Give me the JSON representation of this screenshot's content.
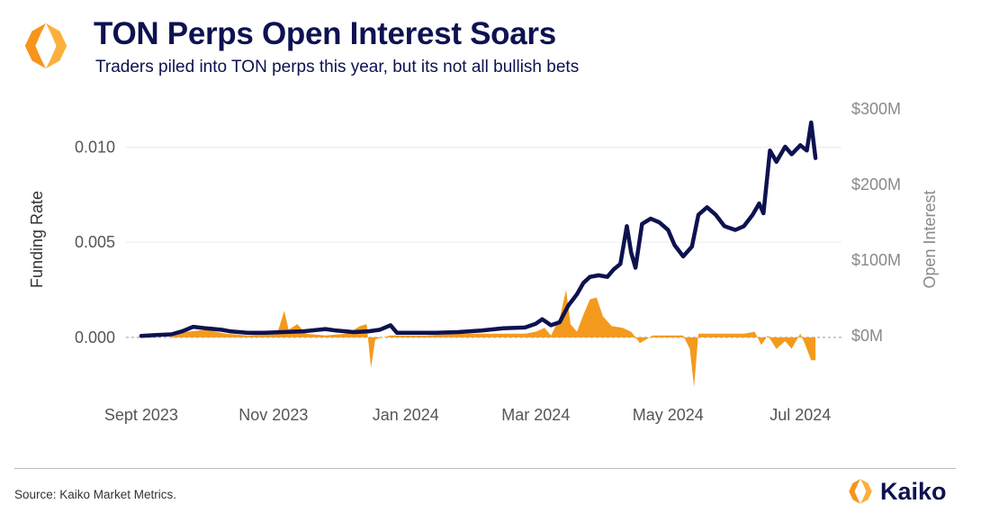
{
  "header": {
    "title": "TON Perps Open Interest Soars",
    "subtitle": "Traders piled into TON perps this year, but its not all bullish bets"
  },
  "footer": {
    "source": "Source: Kaiko Market Metrics.",
    "brand_name": "Kaiko",
    "logo_icon": "kaiko-hexagon-logo"
  },
  "colors": {
    "title": "#0d1250",
    "open_interest_line": "#0d1250",
    "funding_rate_area": "#f39a1e",
    "logo_orange": "#f7941d",
    "logo_yellow": "#fbb03b",
    "right_axis_text": "#8a8a8a"
  },
  "chart_data": {
    "type": "line",
    "x_tick_labels": [
      "Sept 2023",
      "Nov 2023",
      "Jan 2024",
      "Mar 2024",
      "May 2024",
      "Jul 2024"
    ],
    "x_tick_dates": [
      "2023-09-01",
      "2023-11-01",
      "2024-01-01",
      "2024-03-01",
      "2024-05-01",
      "2024-07-01"
    ],
    "xlim": [
      "2023-08-25",
      "2024-07-20"
    ],
    "left_axis": {
      "label": "Funding Rate",
      "ylim": [
        -0.0027,
        0.013
      ],
      "ticks": [
        0.0,
        0.005,
        0.01
      ],
      "tick_labels": [
        "0.000",
        "0.005",
        "0.010"
      ]
    },
    "right_axis": {
      "label": "Open Interest",
      "ylim": [
        -70,
        325
      ],
      "ticks": [
        0,
        100,
        200,
        300
      ],
      "tick_labels": [
        "$0M",
        "$100M",
        "$200M",
        "$300M"
      ]
    },
    "grid": true,
    "series": [
      {
        "axis": "right",
        "kind": "line",
        "points": [
          [
            "2023-09-01",
            0
          ],
          [
            "2023-09-08",
            1
          ],
          [
            "2023-09-15",
            2
          ],
          [
            "2023-09-20",
            6
          ],
          [
            "2023-09-25",
            12
          ],
          [
            "2023-10-01",
            10
          ],
          [
            "2023-10-08",
            8
          ],
          [
            "2023-10-12",
            6
          ],
          [
            "2023-10-20",
            4
          ],
          [
            "2023-10-28",
            4
          ],
          [
            "2023-11-05",
            5
          ],
          [
            "2023-11-15",
            6
          ],
          [
            "2023-11-25",
            9
          ],
          [
            "2023-11-30",
            7
          ],
          [
            "2023-12-08",
            5
          ],
          [
            "2023-12-15",
            6
          ],
          [
            "2023-12-20",
            8
          ],
          [
            "2023-12-25",
            14
          ],
          [
            "2023-12-28",
            4
          ],
          [
            "2024-01-05",
            4
          ],
          [
            "2024-01-15",
            4
          ],
          [
            "2024-01-25",
            5
          ],
          [
            "2024-02-05",
            7
          ],
          [
            "2024-02-15",
            10
          ],
          [
            "2024-02-25",
            11
          ],
          [
            "2024-03-01",
            16
          ],
          [
            "2024-03-04",
            22
          ],
          [
            "2024-03-08",
            14
          ],
          [
            "2024-03-12",
            18
          ],
          [
            "2024-03-16",
            40
          ],
          [
            "2024-03-20",
            55
          ],
          [
            "2024-03-23",
            70
          ],
          [
            "2024-03-26",
            78
          ],
          [
            "2024-03-30",
            80
          ],
          [
            "2024-04-03",
            78
          ],
          [
            "2024-04-06",
            88
          ],
          [
            "2024-04-09",
            95
          ],
          [
            "2024-04-12",
            145
          ],
          [
            "2024-04-14",
            110
          ],
          [
            "2024-04-16",
            90
          ],
          [
            "2024-04-19",
            148
          ],
          [
            "2024-04-23",
            155
          ],
          [
            "2024-04-27",
            150
          ],
          [
            "2024-05-01",
            140
          ],
          [
            "2024-05-04",
            120
          ],
          [
            "2024-05-08",
            105
          ],
          [
            "2024-05-12",
            118
          ],
          [
            "2024-05-15",
            160
          ],
          [
            "2024-05-19",
            170
          ],
          [
            "2024-05-23",
            160
          ],
          [
            "2024-05-27",
            145
          ],
          [
            "2024-06-01",
            140
          ],
          [
            "2024-06-05",
            145
          ],
          [
            "2024-06-09",
            160
          ],
          [
            "2024-06-12",
            175
          ],
          [
            "2024-06-14",
            162
          ],
          [
            "2024-06-17",
            245
          ],
          [
            "2024-06-20",
            230
          ],
          [
            "2024-06-24",
            250
          ],
          [
            "2024-06-27",
            240
          ],
          [
            "2024-07-01",
            252
          ],
          [
            "2024-07-04",
            245
          ],
          [
            "2024-07-06",
            282
          ],
          [
            "2024-07-08",
            235
          ]
        ]
      },
      {
        "axis": "left",
        "kind": "area",
        "points": [
          [
            "2023-09-01",
            0.0
          ],
          [
            "2023-09-14",
            0.0
          ],
          [
            "2023-09-22",
            0.0003
          ],
          [
            "2023-10-01",
            0.0004
          ],
          [
            "2023-10-10",
            0.0002
          ],
          [
            "2023-10-20",
            0.0001
          ],
          [
            "2023-10-30",
            0.0002
          ],
          [
            "2023-11-03",
            0.0003
          ],
          [
            "2023-11-06",
            0.0014
          ],
          [
            "2023-11-08",
            0.0004
          ],
          [
            "2023-11-12",
            0.0007
          ],
          [
            "2023-11-16",
            0.0002
          ],
          [
            "2023-11-25",
            0.0001
          ],
          [
            "2023-12-05",
            0.0002
          ],
          [
            "2023-12-11",
            0.0006
          ],
          [
            "2023-12-14",
            0.0007
          ],
          [
            "2023-12-16",
            -0.0016
          ],
          [
            "2023-12-18",
            -0.0001
          ],
          [
            "2023-12-25",
            0.0001
          ],
          [
            "2024-01-10",
            0.0001
          ],
          [
            "2024-01-25",
            0.0002
          ],
          [
            "2024-02-10",
            0.0002
          ],
          [
            "2024-02-25",
            0.0002
          ],
          [
            "2024-03-01",
            0.0003
          ],
          [
            "2024-03-05",
            0.0005
          ],
          [
            "2024-03-08",
            0.0001
          ],
          [
            "2024-03-12",
            0.001
          ],
          [
            "2024-03-15",
            0.0025
          ],
          [
            "2024-03-17",
            0.0007
          ],
          [
            "2024-03-20",
            0.0003
          ],
          [
            "2024-03-23",
            0.0012
          ],
          [
            "2024-03-26",
            0.002
          ],
          [
            "2024-03-29",
            0.0021
          ],
          [
            "2024-04-01",
            0.0011
          ],
          [
            "2024-04-05",
            0.0006
          ],
          [
            "2024-04-10",
            0.0005
          ],
          [
            "2024-04-14",
            0.0003
          ],
          [
            "2024-04-18",
            -0.0003
          ],
          [
            "2024-04-24",
            0.0001
          ],
          [
            "2024-05-01",
            0.0001
          ],
          [
            "2024-05-08",
            0.0001
          ],
          [
            "2024-05-11",
            -0.0006
          ],
          [
            "2024-05-13",
            -0.0026
          ],
          [
            "2024-05-15",
            0.0002
          ],
          [
            "2024-05-25",
            0.0002
          ],
          [
            "2024-06-05",
            0.0002
          ],
          [
            "2024-06-10",
            0.0003
          ],
          [
            "2024-06-13",
            -0.0004
          ],
          [
            "2024-06-16",
            0.0001
          ],
          [
            "2024-06-20",
            -0.0006
          ],
          [
            "2024-06-24",
            -0.0002
          ],
          [
            "2024-06-27",
            -0.0006
          ],
          [
            "2024-07-01",
            0.0002
          ],
          [
            "2024-07-03",
            -0.0003
          ],
          [
            "2024-07-06",
            -0.0012
          ],
          [
            "2024-07-08",
            -0.0012
          ]
        ]
      }
    ]
  }
}
